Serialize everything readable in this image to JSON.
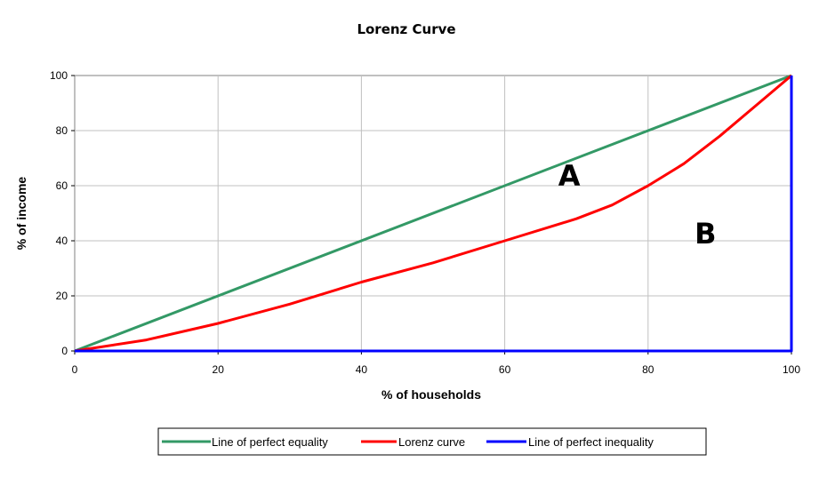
{
  "chart_data": {
    "type": "line",
    "title": "Lorenz Curve",
    "xlabel": "% of households",
    "ylabel": "% of income",
    "xlim": [
      0,
      100
    ],
    "ylim": [
      0,
      100
    ],
    "xticks": [
      0,
      20,
      40,
      60,
      80,
      100
    ],
    "yticks": [
      0,
      20,
      40,
      60,
      80,
      100
    ],
    "grid": true,
    "legend_position": "bottom",
    "series": [
      {
        "name": "Line of perfect equality",
        "color": "#339966",
        "x": [
          0,
          100
        ],
        "y": [
          0,
          100
        ]
      },
      {
        "name": "Lorenz curve",
        "color": "#ff0000",
        "x": [
          0,
          10,
          20,
          30,
          40,
          50,
          60,
          70,
          75,
          80,
          85,
          90,
          95,
          100
        ],
        "y": [
          0,
          4,
          10,
          17,
          25,
          32,
          40,
          48,
          53,
          60,
          68,
          78,
          89,
          100
        ]
      },
      {
        "name": "Line of perfect inequality",
        "color": "#0000ff",
        "x": [
          0,
          100,
          100
        ],
        "y": [
          0,
          0,
          100
        ]
      }
    ],
    "annotations": [
      {
        "text": "A",
        "x": 69,
        "y": 60
      },
      {
        "text": "B",
        "x": 88,
        "y": 39
      }
    ]
  }
}
